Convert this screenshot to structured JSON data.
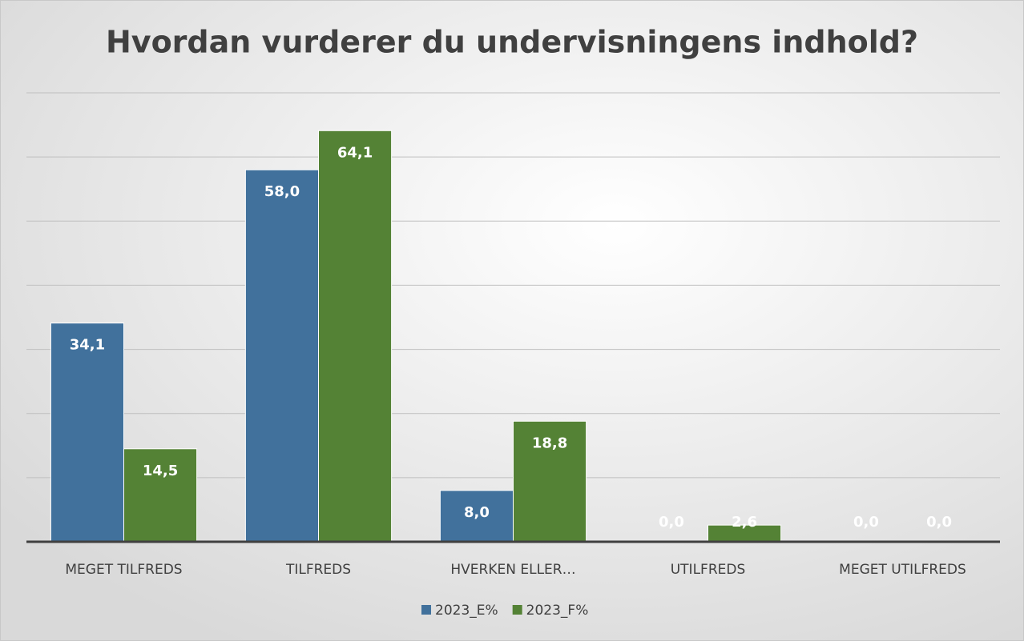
{
  "chart_data": {
    "type": "bar",
    "title": "Hvordan vurderer du undervisningens indhold?",
    "categories": [
      "MEGET TILFREDS",
      "TILFREDS",
      "HVERKEN ELLER…",
      "UTILFREDS",
      "MEGET UTILFREDS"
    ],
    "series": [
      {
        "name": "2023_E%",
        "color": "#41719c",
        "values": [
          34.1,
          58.0,
          8.0,
          0.0,
          0.0
        ],
        "value_labels": [
          "34,1",
          "58,0",
          "8,0",
          "0,0",
          "0,0"
        ]
      },
      {
        "name": "2023_F%",
        "color": "#548235",
        "values": [
          14.5,
          64.1,
          18.8,
          2.6,
          0.0
        ],
        "value_labels": [
          "14,5",
          "64,1",
          "18,8",
          "2,6",
          "0,0"
        ]
      }
    ],
    "ylim": [
      0,
      70
    ],
    "yticks": [
      0,
      10,
      20,
      30,
      40,
      50,
      60,
      70
    ],
    "grid": true,
    "legend": "bottom"
  }
}
